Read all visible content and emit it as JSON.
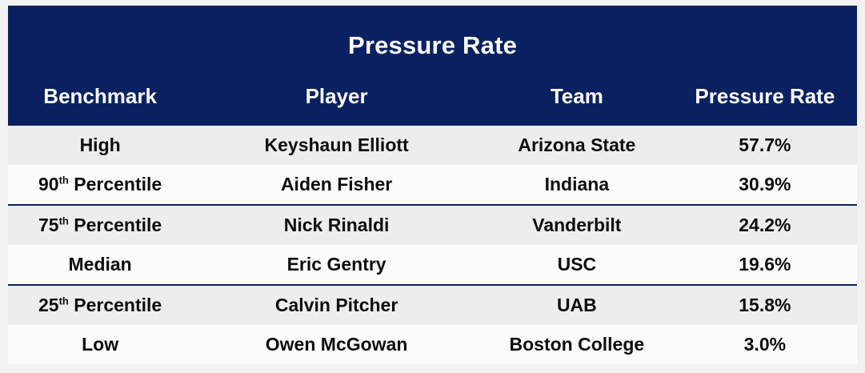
{
  "page": {
    "background": "#F2F2F2"
  },
  "table": {
    "title": "Pressure Rate",
    "columns": [
      "Benchmark",
      "Player",
      "Team",
      "Pressure Rate"
    ],
    "colors": {
      "header_bg": "#0A2161",
      "header_text": "#FFFFFF",
      "row_shaded": "#EDEDED",
      "row_plain": "#FCFCFC",
      "body_text": "#0D0D0D",
      "page_bg": "#F2F2F2",
      "row_rule": "#0A2161"
    },
    "rows": [
      {
        "benchmark": {
          "base": "High",
          "sup": "",
          "rest": ""
        },
        "player": "Keyshaun Elliott",
        "team": "Arizona State",
        "pressure_rate": "57.7%"
      },
      {
        "benchmark": {
          "base": "90",
          "sup": "th",
          "rest": " Percentile"
        },
        "player": "Aiden Fisher",
        "team": "Indiana",
        "pressure_rate": "30.9%"
      },
      {
        "benchmark": {
          "base": "75",
          "sup": "th",
          "rest": " Percentile"
        },
        "player": "Nick Rinaldi",
        "team": "Vanderbilt",
        "pressure_rate": "24.2%"
      },
      {
        "benchmark": {
          "base": "Median",
          "sup": "",
          "rest": ""
        },
        "player": "Eric Gentry",
        "team": "USC",
        "pressure_rate": "19.6%"
      },
      {
        "benchmark": {
          "base": "25",
          "sup": "th",
          "rest": " Percentile"
        },
        "player": "Calvin Pitcher",
        "team": "UAB",
        "pressure_rate": "15.8%"
      },
      {
        "benchmark": {
          "base": "Low",
          "sup": "",
          "rest": ""
        },
        "player": "Owen McGowan",
        "team": "Boston College",
        "pressure_rate": "3.0%"
      }
    ]
  },
  "chart_data": {
    "type": "table",
    "title": "Pressure Rate",
    "columns": [
      "Benchmark",
      "Player",
      "Team",
      "Pressure Rate"
    ],
    "rows": [
      [
        "High",
        "Keyshaun Elliott",
        "Arizona State",
        "57.7%"
      ],
      [
        "90th Percentile",
        "Aiden Fisher",
        "Indiana",
        "30.9%"
      ],
      [
        "75th Percentile",
        "Nick Rinaldi",
        "Vanderbilt",
        "24.2%"
      ],
      [
        "Median",
        "Eric Gentry",
        "USC",
        "19.6%"
      ],
      [
        "25th Percentile",
        "Calvin Pitcher",
        "UAB",
        "15.8%"
      ],
      [
        "Low",
        "Owen McGowan",
        "Boston College",
        "3.0%"
      ]
    ],
    "values_numeric_pct": [
      57.7,
      30.9,
      24.2,
      19.6,
      15.8,
      3.0
    ]
  }
}
